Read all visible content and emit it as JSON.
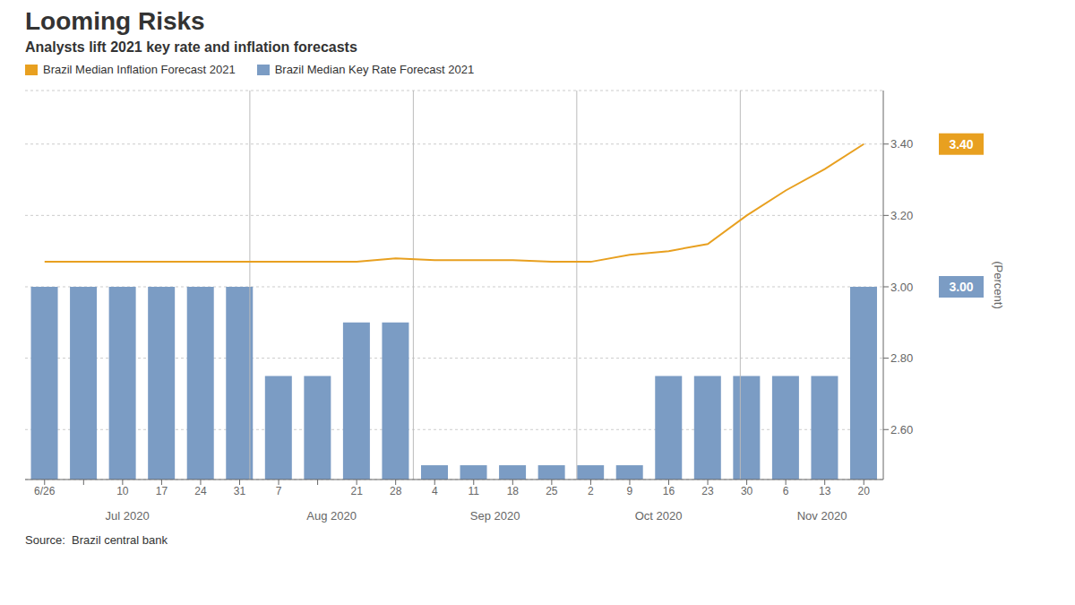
{
  "chart_data": {
    "type": "bar",
    "title": "Looming Risks",
    "subtitle": "Analysts lift 2021 key rate and inflation forecasts",
    "source": "Source:  Brazil central bank",
    "y_label": "(Percent)",
    "categories": [
      "6/26",
      null,
      "10",
      "17",
      "24",
      "31",
      "7",
      null,
      "21",
      "28",
      "4",
      "11",
      "18",
      "25",
      "2",
      "9",
      "16",
      "23",
      "30",
      "6",
      "13",
      "20"
    ],
    "series": [
      {
        "name": "Brazil Median Inflation Forecast 2021",
        "type": "line",
        "color": "#e8a020",
        "values": [
          3.07,
          3.07,
          3.07,
          3.07,
          3.07,
          3.07,
          3.07,
          3.07,
          3.07,
          3.08,
          3.075,
          3.075,
          3.075,
          3.07,
          3.07,
          3.09,
          3.1,
          3.12,
          3.2,
          3.27,
          3.33,
          3.4
        ]
      },
      {
        "name": "Brazil Median Key Rate Forecast 2021",
        "type": "bar",
        "color": "#7b9cc4",
        "values": [
          3.0,
          3.0,
          3.0,
          3.0,
          3.0,
          3.0,
          2.75,
          2.75,
          2.9,
          2.9,
          2.5,
          2.5,
          2.5,
          2.5,
          2.5,
          2.5,
          2.75,
          2.75,
          2.75,
          2.75,
          2.75,
          3.0
        ]
      }
    ],
    "ylim": [
      2.46,
      3.55
    ],
    "yticks": [
      {
        "value": 2.6,
        "label": "2.60"
      },
      {
        "value": 2.8,
        "label": "2.80"
      },
      {
        "value": 3.0,
        "label": "3.00"
      },
      {
        "value": 3.2,
        "label": "3.20"
      },
      {
        "value": 3.4,
        "label": "3.40"
      }
    ],
    "grid": true,
    "legend": "top left",
    "month_groups": [
      {
        "label": "Jul 2020",
        "first": 0,
        "last": 5
      },
      {
        "label": "Aug 2020",
        "first": 6,
        "last": 9
      },
      {
        "label": "Sep 2020",
        "first": 10,
        "last": 13
      },
      {
        "label": "Oct 2020",
        "first": 14,
        "last": 17
      },
      {
        "label": "Nov 2020",
        "first": 18,
        "last": 21
      }
    ],
    "annotations": [
      {
        "text": "3.40",
        "y": 3.4,
        "color": "#e8a020"
      },
      {
        "text": "3.00",
        "y": 3.0,
        "color": "#7b9cc4"
      }
    ]
  }
}
